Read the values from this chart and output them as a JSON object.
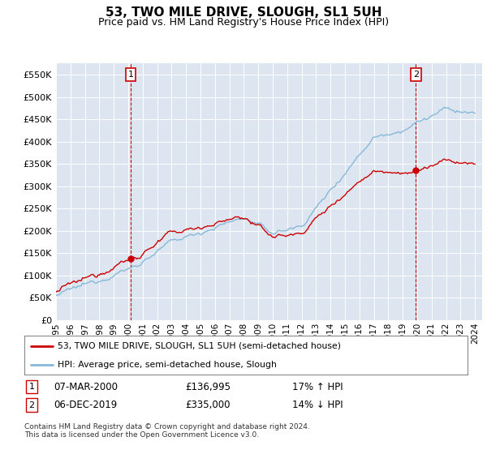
{
  "title": "53, TWO MILE DRIVE, SLOUGH, SL1 5UH",
  "subtitle": "Price paid vs. HM Land Registry's House Price Index (HPI)",
  "ylim": [
    0,
    575000
  ],
  "yticks": [
    0,
    50000,
    100000,
    150000,
    200000,
    250000,
    300000,
    350000,
    400000,
    450000,
    500000,
    550000
  ],
  "ytick_labels": [
    "£0",
    "£50K",
    "£100K",
    "£150K",
    "£200K",
    "£250K",
    "£300K",
    "£350K",
    "£400K",
    "£450K",
    "£500K",
    "£550K"
  ],
  "bg_color": "#dde6f0",
  "red_color": "#cc0000",
  "blue_color": "#88b8d8",
  "sale1_year": 2000.2,
  "sale1_price": 136995,
  "sale2_year": 2019.92,
  "sale2_price": 335000,
  "legend_label_red": "53, TWO MILE DRIVE, SLOUGH, SL1 5UH (semi-detached house)",
  "legend_label_blue": "HPI: Average price, semi-detached house, Slough",
  "ann1": [
    "1",
    "07-MAR-2000",
    "£136,995",
    "17% ↑ HPI"
  ],
  "ann2": [
    "2",
    "06-DEC-2019",
    "£335,000",
    "14% ↓ HPI"
  ],
  "footer": "Contains HM Land Registry data © Crown copyright and database right 2024.\nThis data is licensed under the Open Government Licence v3.0.",
  "xlim_start": 1995,
  "xlim_end": 2024.5
}
